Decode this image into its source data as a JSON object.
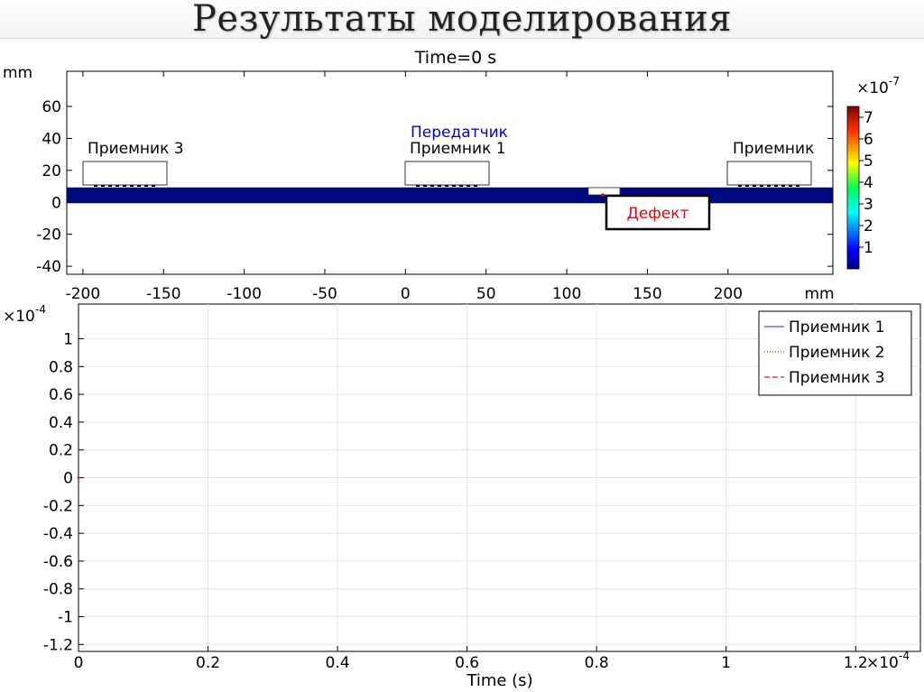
{
  "slide": {
    "title": "Результаты моделирования"
  },
  "chart_data": [
    {
      "type": "heatmap",
      "title": "Time=0 s",
      "x_unit": "mm",
      "y_unit": "mm",
      "xlim": [
        -210,
        265
      ],
      "ylim": [
        -45,
        82
      ],
      "x_ticks": [
        "-200",
        "-150",
        "-100",
        "-50",
        "0",
        "50",
        "100",
        "150",
        "200"
      ],
      "y_ticks": [
        "60",
        "40",
        "20",
        "0",
        "-20",
        "-40"
      ],
      "colorbar": {
        "exponent": "-7",
        "ticks": [
          "7",
          "6",
          "5",
          "4",
          "3",
          "2",
          "1"
        ],
        "range": [
          0,
          7.5
        ]
      },
      "annotations": {
        "transmitter": "Передатчик",
        "receiver1": "Приемник 1",
        "receiver3": "Приемник 3",
        "receiver_right": "Приемник",
        "defect": "Дефект"
      },
      "colors": {
        "plate": "#000a80",
        "defect_text": "#e8000b",
        "transmitter_text": "#0000e0"
      }
    },
    {
      "type": "line",
      "xlabel": "Time (s)",
      "x_exponent": "-4",
      "y_exponent": "-4",
      "xlim": [
        0,
        1.3
      ],
      "ylim": [
        -1.25,
        1.25
      ],
      "x_ticks": [
        "0",
        "0.2",
        "0.4",
        "0.6",
        "0.8",
        "1",
        "1.2"
      ],
      "y_ticks": [
        "1",
        "0.8",
        "0.6",
        "0.4",
        "0.2",
        "0",
        "-0.2",
        "-0.4",
        "-0.6",
        "-0.8",
        "-1",
        "-1.2"
      ],
      "x_exponent_label": "×10",
      "y_exponent_label": "×10",
      "series": [
        {
          "name": "Приемник 1",
          "color": "#3355ff",
          "style": "solid",
          "x": [
            0
          ],
          "y": [
            0
          ]
        },
        {
          "name": "Приемник 2",
          "color": "#00aa00",
          "style": "dotted",
          "x": [
            0
          ],
          "y": [
            0
          ]
        },
        {
          "name": "Приемник 3",
          "color": "#dd2222",
          "style": "dashed",
          "x": [
            0
          ],
          "y": [
            0
          ]
        }
      ]
    }
  ]
}
